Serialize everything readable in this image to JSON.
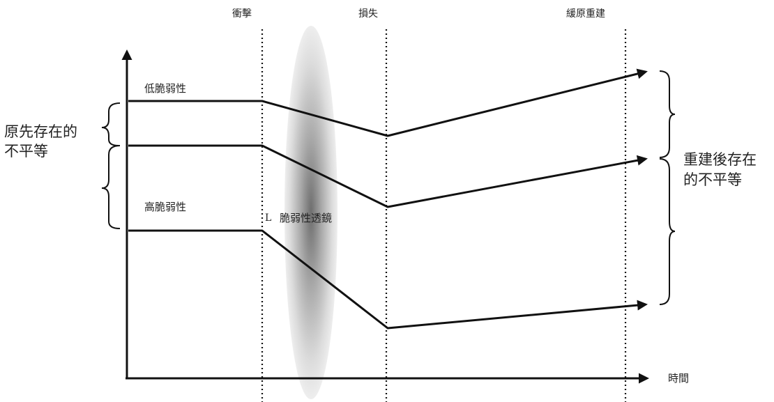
{
  "stages": {
    "shock": "衝擊",
    "loss": "損失",
    "recovery": "緩原重建"
  },
  "x_axis_label": "時間",
  "labels": {
    "low_vulnerability": "低脆弱性",
    "high_vulnerability": "高脆弱性",
    "vulnerability_lens": "脆弱性透鏡",
    "lens_mark": "L"
  },
  "left_brace_label": [
    "原先存在的",
    "不平等"
  ],
  "right_brace_label": [
    "重建後存在",
    "的不平等"
  ],
  "trajectories": [
    {
      "name": "low-vulnerability",
      "levels": {
        "before": "high",
        "loss": "slight drop",
        "after": "highest"
      }
    },
    {
      "name": "middle",
      "levels": {
        "before": "middle",
        "loss": "larger drop",
        "after": "middle"
      }
    },
    {
      "name": "high-vulnerability",
      "levels": {
        "before": "low",
        "loss": "steep drop",
        "after": "lowest"
      }
    }
  ],
  "colors": {
    "ink": "#111111",
    "lens": "#cfcfcf"
  }
}
